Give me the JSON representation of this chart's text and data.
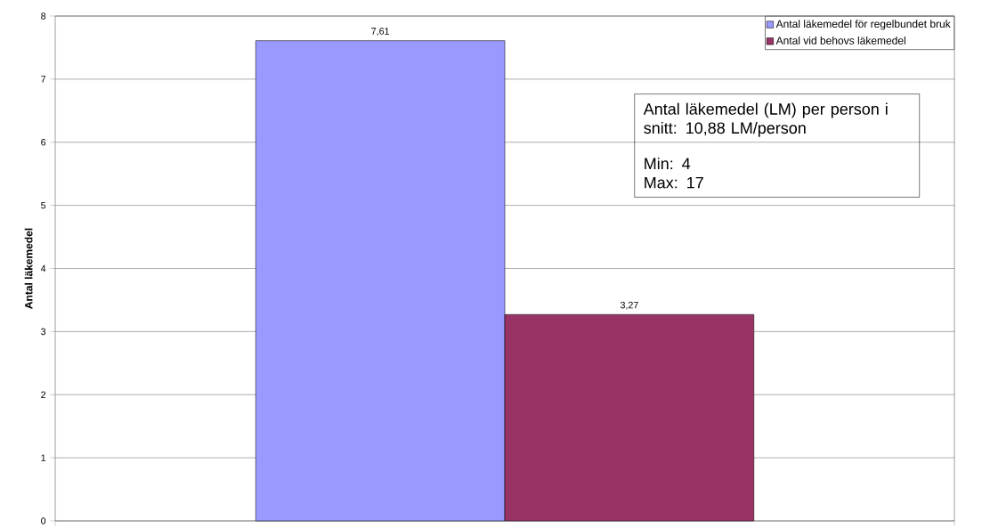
{
  "chart_data": {
    "type": "bar",
    "ylabel": "Antal läkemedel",
    "categories": [
      null
    ],
    "series": [
      {
        "name": "Antal läkemedel för regelbundet bruk",
        "color": "#9999ff",
        "values": [
          7.61
        ],
        "value_labels": [
          "7,61"
        ]
      },
      {
        "name": "Antal vid behovs läkemedel",
        "color": "#993366",
        "values": [
          3.27
        ],
        "value_labels": [
          "3,27"
        ]
      }
    ],
    "ylim": [
      0,
      8
    ],
    "yticks": [
      0,
      1,
      2,
      3,
      4,
      5,
      6,
      7,
      8
    ],
    "grid": "y",
    "legend": "top right",
    "tick_labels": "y",
    "annotations": [
      "Antal läkemedel (LM) per person i snitt: 10,88 LM/person",
      "Min: 4",
      "Max: 17"
    ]
  }
}
